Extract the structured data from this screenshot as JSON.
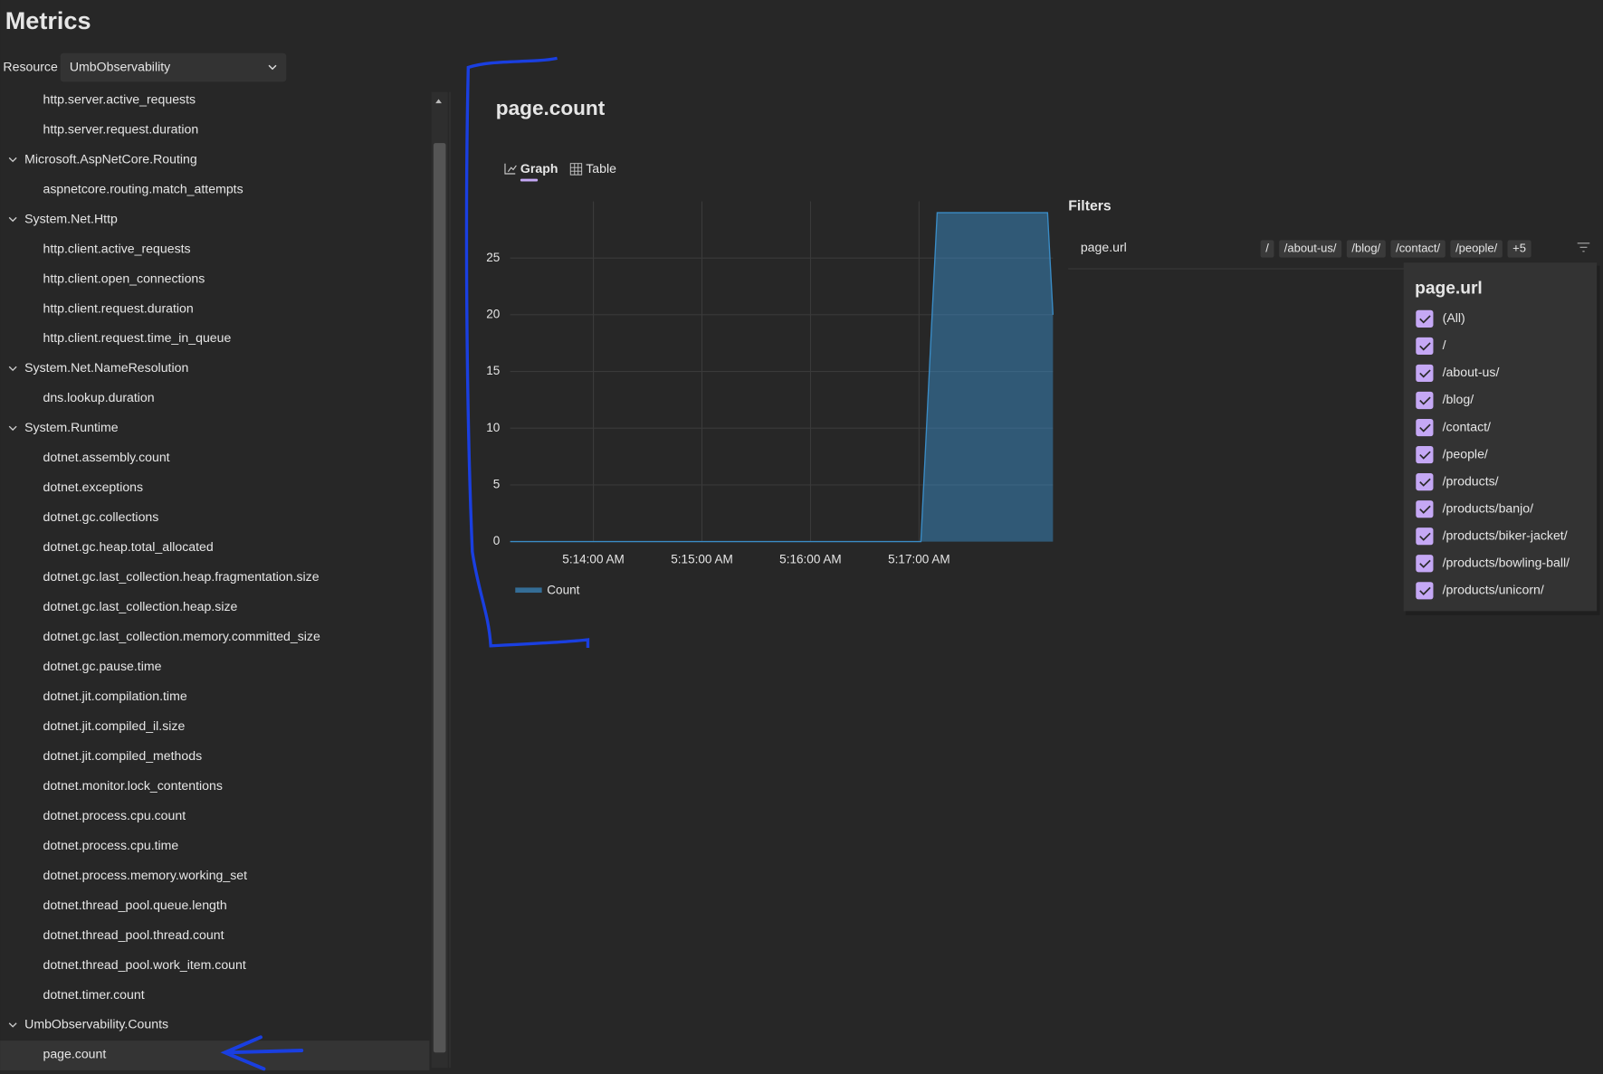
{
  "header": {
    "title": "Metrics"
  },
  "resource": {
    "label": "Resource",
    "value": "UmbObservability"
  },
  "tree": [
    {
      "label": "http.server.active_requests",
      "kind": "metric"
    },
    {
      "label": "http.server.request.duration",
      "kind": "metric"
    },
    {
      "label": "Microsoft.AspNetCore.Routing",
      "kind": "group"
    },
    {
      "label": "aspnetcore.routing.match_attempts",
      "kind": "metric"
    },
    {
      "label": "System.Net.Http",
      "kind": "group"
    },
    {
      "label": "http.client.active_requests",
      "kind": "metric"
    },
    {
      "label": "http.client.open_connections",
      "kind": "metric"
    },
    {
      "label": "http.client.request.duration",
      "kind": "metric"
    },
    {
      "label": "http.client.request.time_in_queue",
      "kind": "metric"
    },
    {
      "label": "System.Net.NameResolution",
      "kind": "group"
    },
    {
      "label": "dns.lookup.duration",
      "kind": "metric"
    },
    {
      "label": "System.Runtime",
      "kind": "group"
    },
    {
      "label": "dotnet.assembly.count",
      "kind": "metric"
    },
    {
      "label": "dotnet.exceptions",
      "kind": "metric"
    },
    {
      "label": "dotnet.gc.collections",
      "kind": "metric"
    },
    {
      "label": "dotnet.gc.heap.total_allocated",
      "kind": "metric"
    },
    {
      "label": "dotnet.gc.last_collection.heap.fragmentation.size",
      "kind": "metric"
    },
    {
      "label": "dotnet.gc.last_collection.heap.size",
      "kind": "metric"
    },
    {
      "label": "dotnet.gc.last_collection.memory.committed_size",
      "kind": "metric"
    },
    {
      "label": "dotnet.gc.pause.time",
      "kind": "metric"
    },
    {
      "label": "dotnet.jit.compilation.time",
      "kind": "metric"
    },
    {
      "label": "dotnet.jit.compiled_il.size",
      "kind": "metric"
    },
    {
      "label": "dotnet.jit.compiled_methods",
      "kind": "metric"
    },
    {
      "label": "dotnet.monitor.lock_contentions",
      "kind": "metric"
    },
    {
      "label": "dotnet.process.cpu.count",
      "kind": "metric"
    },
    {
      "label": "dotnet.process.cpu.time",
      "kind": "metric"
    },
    {
      "label": "dotnet.process.memory.working_set",
      "kind": "metric"
    },
    {
      "label": "dotnet.thread_pool.queue.length",
      "kind": "metric"
    },
    {
      "label": "dotnet.thread_pool.thread.count",
      "kind": "metric"
    },
    {
      "label": "dotnet.thread_pool.work_item.count",
      "kind": "metric"
    },
    {
      "label": "dotnet.timer.count",
      "kind": "metric"
    },
    {
      "label": "UmbObservability.Counts",
      "kind": "group"
    },
    {
      "label": "page.count",
      "kind": "metric",
      "selected": true
    }
  ],
  "metric": {
    "title": "page.count",
    "tabs": [
      "Graph",
      "Table"
    ]
  },
  "chart_data": {
    "type": "area",
    "x": [
      "5:13:14 AM",
      "5:17:01 AM",
      "5:17:10 AM",
      "5:18:11 AM",
      "5:18:14 AM"
    ],
    "series": [
      {
        "name": "Count",
        "color": "#3a8cc6",
        "values": [
          0,
          0,
          29,
          29,
          20
        ]
      }
    ],
    "xlim": [
      "5:13:14 AM",
      "5:18:14 AM"
    ],
    "xticks": [
      "5:14:00 AM",
      "5:15:00 AM",
      "5:16:00 AM",
      "5:17:00 AM"
    ],
    "ylim": [
      0,
      30
    ],
    "yticks": [
      0,
      5,
      10,
      15,
      20,
      25
    ],
    "grid": true
  },
  "filters": {
    "title": "Filters",
    "name": "page.url",
    "chips": [
      "/",
      "/about-us/",
      "/blog/",
      "/contact/",
      "/people/",
      "+5"
    ]
  },
  "dropdown": {
    "title": "page.url",
    "options": [
      "(All)",
      "/",
      "/about-us/",
      "/blog/",
      "/contact/",
      "/people/",
      "/products/",
      "/products/banjo/",
      "/products/biker-jacket/",
      "/products/bowling-ball/",
      "/products/unicorn/"
    ]
  }
}
